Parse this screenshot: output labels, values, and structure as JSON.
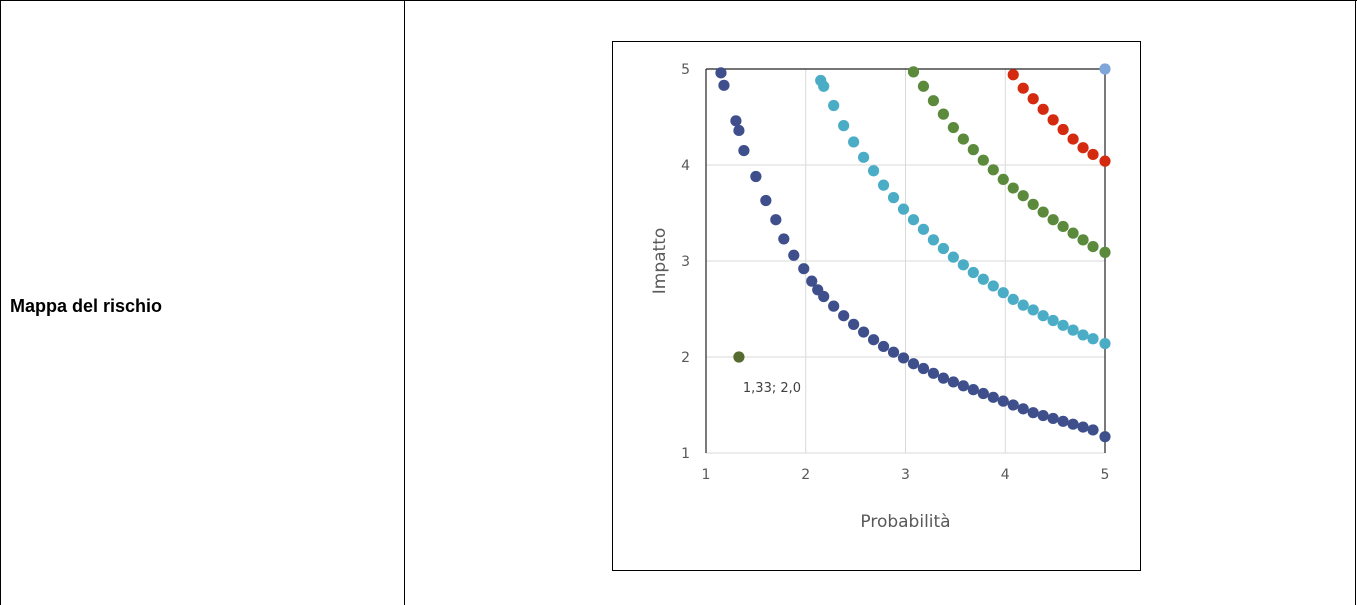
{
  "table": {
    "row_label": "Mappa del rischio"
  },
  "chart_data": {
    "type": "scatter",
    "title": "",
    "xlabel": "Probabilità",
    "ylabel": "Impatto",
    "xlim": [
      1,
      5
    ],
    "ylim": [
      1,
      5
    ],
    "x_ticks": [
      "1",
      "2",
      "3",
      "4",
      "5"
    ],
    "y_ticks": [
      "1",
      "2",
      "3",
      "4",
      "5"
    ],
    "grid": true,
    "series": [
      {
        "color": "#3e4f8c",
        "points": [
          [
            1.15,
            4.96
          ],
          [
            1.18,
            4.83
          ],
          [
            1.3,
            4.46
          ],
          [
            1.33,
            4.36
          ],
          [
            1.38,
            4.15
          ],
          [
            1.5,
            3.88
          ],
          [
            1.6,
            3.63
          ],
          [
            1.7,
            3.43
          ],
          [
            1.78,
            3.23
          ],
          [
            1.88,
            3.06
          ],
          [
            1.98,
            2.92
          ],
          [
            2.06,
            2.79
          ],
          [
            2.12,
            2.7
          ],
          [
            2.18,
            2.63
          ],
          [
            2.28,
            2.53
          ],
          [
            2.38,
            2.43
          ],
          [
            2.48,
            2.34
          ],
          [
            2.58,
            2.26
          ],
          [
            2.68,
            2.18
          ],
          [
            2.78,
            2.11
          ],
          [
            2.88,
            2.05
          ],
          [
            2.98,
            1.99
          ],
          [
            3.08,
            1.93
          ],
          [
            3.18,
            1.88
          ],
          [
            3.28,
            1.83
          ],
          [
            3.38,
            1.78
          ],
          [
            3.48,
            1.74
          ],
          [
            3.58,
            1.7
          ],
          [
            3.68,
            1.66
          ],
          [
            3.78,
            1.62
          ],
          [
            3.88,
            1.58
          ],
          [
            3.98,
            1.54
          ],
          [
            4.08,
            1.5
          ],
          [
            4.18,
            1.46
          ],
          [
            4.28,
            1.42
          ],
          [
            4.38,
            1.39
          ],
          [
            4.48,
            1.36
          ],
          [
            4.58,
            1.33
          ],
          [
            4.68,
            1.3
          ],
          [
            4.78,
            1.27
          ],
          [
            4.88,
            1.24
          ],
          [
            5.0,
            1.17
          ]
        ]
      },
      {
        "color": "#4bacc6",
        "points": [
          [
            2.15,
            4.88
          ],
          [
            2.18,
            4.82
          ],
          [
            2.28,
            4.62
          ],
          [
            2.38,
            4.41
          ],
          [
            2.48,
            4.24
          ],
          [
            2.58,
            4.08
          ],
          [
            2.68,
            3.94
          ],
          [
            2.78,
            3.79
          ],
          [
            2.88,
            3.66
          ],
          [
            2.98,
            3.54
          ],
          [
            3.08,
            3.43
          ],
          [
            3.18,
            3.33
          ],
          [
            3.28,
            3.22
          ],
          [
            3.38,
            3.13
          ],
          [
            3.48,
            3.04
          ],
          [
            3.58,
            2.96
          ],
          [
            3.68,
            2.88
          ],
          [
            3.78,
            2.81
          ],
          [
            3.88,
            2.74
          ],
          [
            3.98,
            2.67
          ],
          [
            4.08,
            2.6
          ],
          [
            4.18,
            2.54
          ],
          [
            4.28,
            2.49
          ],
          [
            4.38,
            2.43
          ],
          [
            4.48,
            2.38
          ],
          [
            4.58,
            2.33
          ],
          [
            4.68,
            2.28
          ],
          [
            4.78,
            2.23
          ],
          [
            4.88,
            2.19
          ],
          [
            5.0,
            2.14
          ]
        ]
      },
      {
        "color": "#5b8a3c",
        "points": [
          [
            3.08,
            4.97
          ],
          [
            3.18,
            4.82
          ],
          [
            3.28,
            4.67
          ],
          [
            3.38,
            4.53
          ],
          [
            3.48,
            4.39
          ],
          [
            3.58,
            4.27
          ],
          [
            3.68,
            4.16
          ],
          [
            3.78,
            4.05
          ],
          [
            3.88,
            3.95
          ],
          [
            3.98,
            3.85
          ],
          [
            4.08,
            3.76
          ],
          [
            4.18,
            3.68
          ],
          [
            4.28,
            3.59
          ],
          [
            4.38,
            3.51
          ],
          [
            4.48,
            3.43
          ],
          [
            4.58,
            3.36
          ],
          [
            4.68,
            3.29
          ],
          [
            4.78,
            3.22
          ],
          [
            4.88,
            3.15
          ],
          [
            5.0,
            3.09
          ]
        ]
      },
      {
        "color": "#d42a10",
        "points": [
          [
            4.08,
            4.94
          ],
          [
            4.18,
            4.8
          ],
          [
            4.28,
            4.69
          ],
          [
            4.38,
            4.58
          ],
          [
            4.48,
            4.47
          ],
          [
            4.58,
            4.37
          ],
          [
            4.68,
            4.27
          ],
          [
            4.78,
            4.18
          ],
          [
            4.88,
            4.11
          ],
          [
            5.0,
            4.04
          ]
        ]
      },
      {
        "color": "#7ea6d8",
        "points": [
          [
            5.0,
            5.0
          ]
        ]
      },
      {
        "color": "#556b2f",
        "points": [
          [
            1.33,
            2.0
          ]
        ]
      }
    ],
    "annotations": [
      {
        "x": 1.33,
        "y": 2.0,
        "text": "1,33; 2,0"
      }
    ]
  }
}
